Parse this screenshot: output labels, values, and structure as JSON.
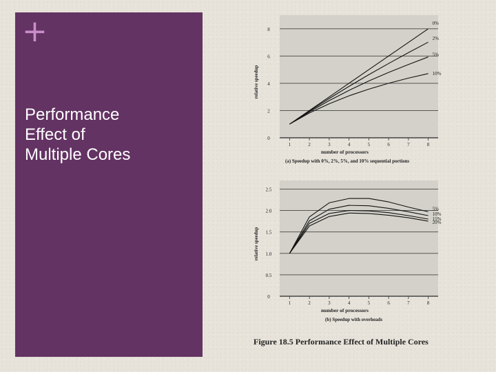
{
  "slide": {
    "plus_glyph": "+",
    "title": "Performance\nEffect of\nMultiple Cores",
    "figure_caption": "Figure 18.5  Performance Effect of Multiple Cores"
  },
  "colors": {
    "panel": "#633363",
    "accent": "#c98ec9",
    "chart_bg": "#d3d1c9",
    "ink": "#222222"
  },
  "chart_data": [
    {
      "type": "line",
      "caption": "(a) Speedup with 0%, 2%, 5%, and 10% sequential portions",
      "xlabel": "number of processors",
      "ylabel": "relative speedup",
      "xlim": [
        0.5,
        8.5
      ],
      "ylim": [
        0,
        9
      ],
      "x_ticks": [
        1,
        2,
        3,
        4,
        5,
        6,
        7,
        8
      ],
      "y_ticks": [
        0,
        2,
        4,
        6,
        8
      ],
      "grid": "horizontal",
      "series": [
        {
          "name": "0%",
          "x": [
            1,
            2,
            3,
            4,
            5,
            6,
            7,
            8
          ],
          "y": [
            1,
            2,
            3,
            4,
            5,
            6,
            7,
            8
          ]
        },
        {
          "name": "2%",
          "x": [
            1,
            2,
            3,
            4,
            5,
            6,
            7,
            8
          ],
          "y": [
            1,
            1.96,
            2.88,
            3.77,
            4.63,
            5.45,
            6.25,
            7.02
          ]
        },
        {
          "name": "5%",
          "x": [
            1,
            2,
            3,
            4,
            5,
            6,
            7,
            8
          ],
          "y": [
            1,
            1.9,
            2.73,
            3.48,
            4.17,
            4.8,
            5.38,
            5.93
          ]
        },
        {
          "name": "10%",
          "x": [
            1,
            2,
            3,
            4,
            5,
            6,
            7,
            8
          ],
          "y": [
            1,
            1.82,
            2.5,
            3.08,
            3.57,
            4.0,
            4.38,
            4.71
          ]
        }
      ]
    },
    {
      "type": "line",
      "caption": "(b) Speedup with overheads",
      "xlabel": "number of processors",
      "ylabel": "relative speedup",
      "xlim": [
        0.5,
        8.5
      ],
      "ylim": [
        0,
        2.7
      ],
      "x_ticks": [
        1,
        2,
        3,
        4,
        5,
        6,
        7,
        8
      ],
      "y_ticks": [
        0,
        0.5,
        1.0,
        1.5,
        2.0,
        2.5
      ],
      "y_tick_labels": [
        "0",
        "0.5",
        "1.0",
        "1.5",
        "2.0",
        "2.5"
      ],
      "grid": "horizontal",
      "series": [
        {
          "name": "5%",
          "x": [
            1,
            2,
            3,
            4,
            5,
            6,
            7,
            8
          ],
          "y": [
            1.0,
            1.85,
            2.18,
            2.28,
            2.28,
            2.2,
            2.08,
            1.97
          ]
        },
        {
          "name": "10%",
          "x": [
            1,
            2,
            3,
            4,
            5,
            6,
            7,
            8
          ],
          "y": [
            1.0,
            1.76,
            2.03,
            2.12,
            2.11,
            2.05,
            1.97,
            1.88
          ]
        },
        {
          "name": "15%",
          "x": [
            1,
            2,
            3,
            4,
            5,
            6,
            7,
            8
          ],
          "y": [
            1.0,
            1.7,
            1.93,
            2.0,
            1.99,
            1.95,
            1.88,
            1.8
          ]
        },
        {
          "name": "20%",
          "x": [
            1,
            2,
            3,
            4,
            5,
            6,
            7,
            8
          ],
          "y": [
            1.0,
            1.64,
            1.86,
            1.94,
            1.93,
            1.89,
            1.83,
            1.75
          ]
        }
      ]
    }
  ]
}
